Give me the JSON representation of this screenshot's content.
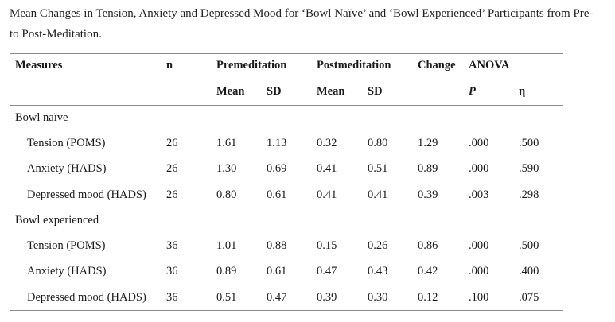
{
  "caption": "Mean Changes in Tension, Anxiety and Depressed Mood for ‘Bowl Naïve’ and ‘Bowl Experienced’ Participants from Pre- to Post-Meditation.",
  "header": {
    "measures": "Measures",
    "n": "n",
    "premeditation": "Premeditation",
    "postmeditation": "Postmeditation",
    "change": "Change",
    "anova": "ANOVA",
    "pre_mean": "Mean",
    "pre_sd": "SD",
    "post_mean": "Mean",
    "post_sd": "SD",
    "p": "P",
    "eta": "η"
  },
  "groups": [
    {
      "label": "Bowl naïve",
      "rows": [
        {
          "measure": "Tension (POMS)",
          "n": "26",
          "pre_mean": "1.61",
          "pre_sd": "1.13",
          "post_mean": "0.32",
          "post_sd": "0.80",
          "change": "1.29",
          "p": ".000",
          "eta": ".500"
        },
        {
          "measure": "Anxiety (HADS)",
          "n": "26",
          "pre_mean": "1.30",
          "pre_sd": "0.69",
          "post_mean": "0.41",
          "post_sd": "0.51",
          "change": "0.89",
          "p": ".000",
          "eta": ".590"
        },
        {
          "measure": "Depressed mood (HADS)",
          "n": "26",
          "pre_mean": "0.80",
          "pre_sd": "0.61",
          "post_mean": "0.41",
          "post_sd": "0.41",
          "change": "0.39",
          "p": ".003",
          "eta": ".298"
        }
      ]
    },
    {
      "label": "Bowl experienced",
      "rows": [
        {
          "measure": "Tension (POMS)",
          "n": "36",
          "pre_mean": "1.01",
          "pre_sd": "0.88",
          "post_mean": "0.15",
          "post_sd": "0.26",
          "change": "0.86",
          "p": ".000",
          "eta": ".500"
        },
        {
          "measure": "Anxiety (HADS)",
          "n": "36",
          "pre_mean": "0.89",
          "pre_sd": "0.61",
          "post_mean": "0.47",
          "post_sd": "0.43",
          "change": "0.42",
          "p": ".000",
          "eta": ".400"
        },
        {
          "measure": "Depressed mood (HADS)",
          "n": "36",
          "pre_mean": "0.51",
          "pre_sd": "0.47",
          "post_mean": "0.39",
          "post_sd": "0.30",
          "change": "0.12",
          "p": ".100",
          "eta": ".075"
        }
      ]
    }
  ]
}
